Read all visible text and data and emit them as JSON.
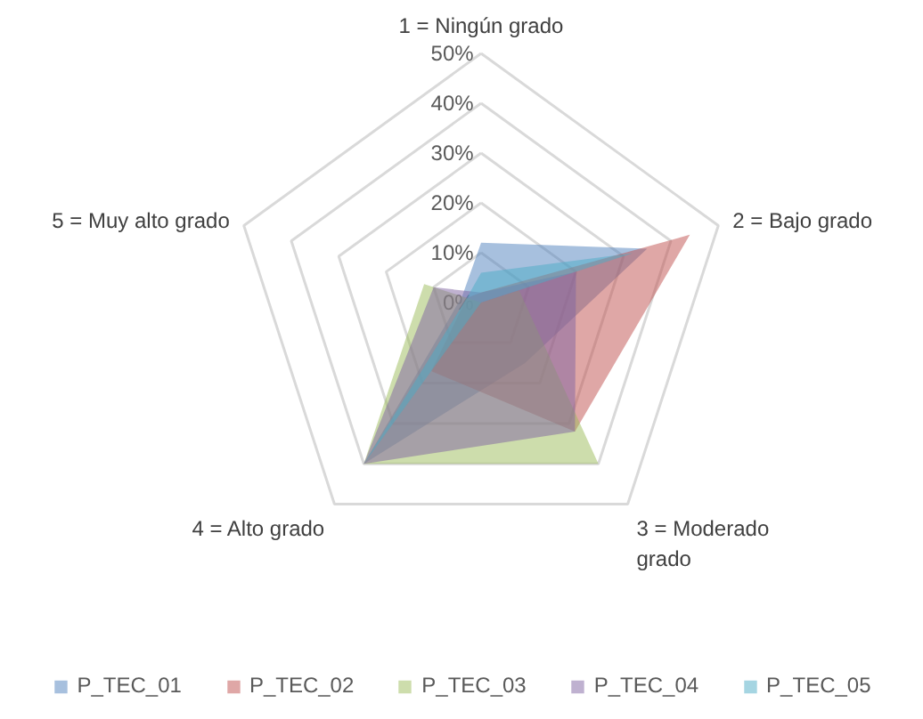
{
  "chart_data": {
    "type": "radar",
    "categories": [
      "1 = Ningún grado",
      "2 = Bajo grado",
      "3 = Moderado grado",
      "4 = Alto grado",
      "5 = Muy alto grado"
    ],
    "ylim": [
      0,
      50
    ],
    "yticks": [
      {
        "value": 0,
        "label": "0%"
      },
      {
        "value": 10,
        "label": "10%"
      },
      {
        "value": 20,
        "label": "20%"
      },
      {
        "value": 30,
        "label": "30%"
      },
      {
        "value": 40,
        "label": "40%"
      },
      {
        "value": 50,
        "label": "50%"
      }
    ],
    "grid": true,
    "legend": "bottom",
    "marker": "none",
    "series": [
      {
        "name": "P_TEC_01",
        "color": "#4f81bd",
        "values": [
          12,
          35,
          15,
          40,
          4
        ]
      },
      {
        "name": "P_TEC_02",
        "color": "#c0504d",
        "values": [
          2,
          44,
          32,
          17,
          3
        ]
      },
      {
        "name": "P_TEC_03",
        "color": "#9bbb59",
        "values": [
          0,
          8,
          40,
          40,
          12
        ]
      },
      {
        "name": "P_TEC_04",
        "color": "#8064a2",
        "values": [
          2,
          20,
          32,
          40,
          10
        ]
      },
      {
        "name": "P_TEC_05",
        "color": "#4bacc6",
        "values": [
          6,
          32,
          0,
          40,
          3
        ]
      }
    ]
  }
}
